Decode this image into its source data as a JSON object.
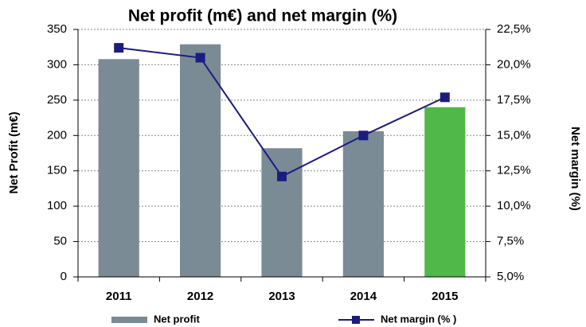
{
  "chart_data": {
    "type": "bar",
    "title": "Net profit (m€) and net margin (%)",
    "y_label": "Net Profit (m€)",
    "y2_label": "Net margin (%)",
    "categories": [
      "2011",
      "2012",
      "2013",
      "2014",
      "2015"
    ],
    "series": [
      {
        "name": "Net profit",
        "type": "bar",
        "color": "#7b8b96",
        "colors": [
          "#7b8b96",
          "#7b8b96",
          "#7b8b96",
          "#7b8b96",
          "#50b848"
        ],
        "values": [
          308,
          329,
          182,
          206,
          240
        ]
      },
      {
        "name": "Net margin (% )",
        "type": "line",
        "axis": "y2",
        "color": "#1c1c80",
        "values": [
          21.2,
          20.5,
          12.1,
          15.0,
          17.7
        ]
      }
    ],
    "ylim": [
      0,
      350
    ],
    "yticks": [
      0,
      50,
      100,
      150,
      200,
      250,
      300,
      350
    ],
    "y2lim": [
      5,
      22.5
    ],
    "y2ticks": [
      {
        "value": 5,
        "label": "5,0%"
      },
      {
        "value": 7.5,
        "label": "7,5%"
      },
      {
        "value": 10,
        "label": "10,0%"
      },
      {
        "value": 12.5,
        "label": "12,5%"
      },
      {
        "value": 15,
        "label": "15,0%"
      },
      {
        "value": 17.5,
        "label": "17,5%"
      },
      {
        "value": 20,
        "label": "20,0%"
      },
      {
        "value": 22.5,
        "label": "22,5%"
      }
    ],
    "grid": true
  }
}
